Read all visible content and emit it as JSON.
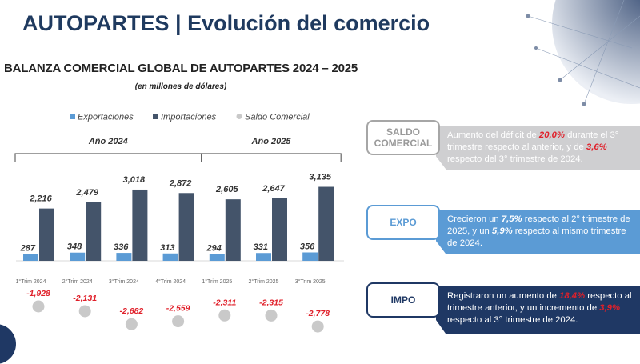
{
  "header": {
    "title": "AUTOPARTES | Evolución del comercio"
  },
  "colors": {
    "exports": "#5b9bd5",
    "imports": "#44546a",
    "balance": "#c9c9c9",
    "negative_label": "#e0202a",
    "saldo_band": "#cfcfd1",
    "expo_band": "#5b9bd5",
    "impo_band": "#1f3864"
  },
  "chart_data": {
    "type": "bar",
    "title": "BALANZA COMERCIAL GLOBAL DE AUTOPARTES 2024 – 2025",
    "subtitle": "(en millones de dólares)",
    "categories": [
      "1°Trim 2024",
      "2°Trim 2024",
      "3°Trim 2024",
      "4°Trim 2024",
      "1°Trim 2025",
      "2°Trim 2025",
      "3°Trim 2025"
    ],
    "groups": [
      {
        "label": "Año 2024",
        "span": [
          0,
          3
        ]
      },
      {
        "label": "Año 2025",
        "span": [
          4,
          6
        ]
      }
    ],
    "legend_position": "top",
    "grid": false,
    "series": [
      {
        "name": "Exportaciones",
        "values": [
          287,
          348,
          336,
          313,
          294,
          331,
          356
        ]
      },
      {
        "name": "Importaciones",
        "values": [
          2216,
          2479,
          3018,
          2872,
          2605,
          2647,
          3135
        ]
      },
      {
        "name": "Saldo Comercial",
        "type": "dot",
        "values": [
          -1928,
          -2131,
          -2682,
          -2559,
          -2311,
          -2315,
          -2778
        ]
      }
    ],
    "value_labels": {
      "exports": [
        "287",
        "348",
        "336",
        "313",
        "294",
        "331",
        "356"
      ],
      "imports": [
        "2,216",
        "2,479",
        "3,018",
        "2,872",
        "2,605",
        "2,647",
        "3,135"
      ],
      "balance": [
        "-1,928",
        "-2,131",
        "-2,682",
        "-2,559",
        "-2,311",
        "-2,315",
        "-2,778"
      ]
    }
  },
  "panels": {
    "saldo": {
      "tag": "SALDO COMERCIAL",
      "t1": "Aumento del déficit de ",
      "h1": "20,0%",
      "t2": " durante el 3° trimestre respecto al anterior, y de ",
      "h2": "3,6%",
      "t3": " respecto del 3° trimestre de 2024."
    },
    "expo": {
      "tag": "EXPO",
      "t1": "Crecieron un ",
      "h1": "7,5%",
      "t2": " respecto al 2° trimestre de 2025, y un ",
      "h2": "5,9%",
      "t3": " respecto al mismo trimestre de 2024."
    },
    "impo": {
      "tag": "IMPO",
      "t1": "Registraron un aumento de ",
      "h1": "18,4%",
      "t2": " respecto al trimestre anterior, y un incremento de ",
      "h2": "3,9%",
      "t3": " respecto al 3° trimestre de 2024."
    }
  }
}
